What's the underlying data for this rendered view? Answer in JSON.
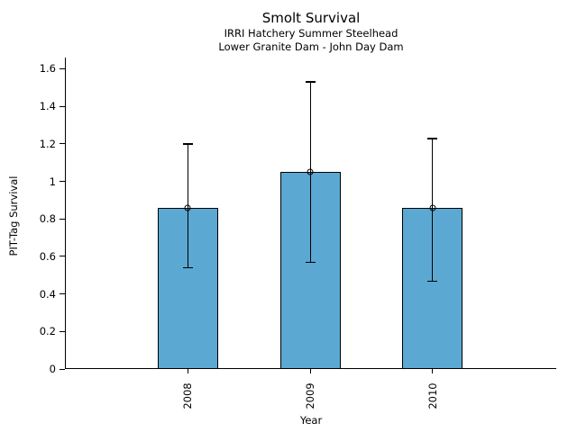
{
  "chart_data": {
    "type": "bar",
    "title": "Smolt Survival",
    "subtitle1": "IRRI Hatchery Summer Steelhead",
    "subtitle2": "Lower Granite Dam - John Day Dam",
    "xlabel": "Year",
    "ylabel": "PIT-Tag Survival",
    "categories": [
      "2008",
      "2009",
      "2010"
    ],
    "values": [
      0.86,
      1.05,
      0.86
    ],
    "error_low": [
      0.54,
      0.57,
      0.47
    ],
    "error_high": [
      1.2,
      1.53,
      1.23
    ],
    "ylim": [
      0,
      1.65
    ],
    "yticks": [
      0,
      0.2,
      0.4,
      0.6,
      0.8,
      1,
      1.2,
      1.4,
      1.6
    ],
    "ytick_labels": [
      "0",
      "0.2",
      "0.4",
      "0.6",
      "0.8",
      "1",
      "1.2",
      "1.4",
      "1.6"
    ],
    "grid": false,
    "legend_position": "none",
    "marker": "open-circle",
    "colors": {
      "bar_fill": "#5BA8D2",
      "bar_edge": "#000000",
      "error_bar": "#000000",
      "text": "#000000",
      "background": "#ffffff"
    }
  }
}
